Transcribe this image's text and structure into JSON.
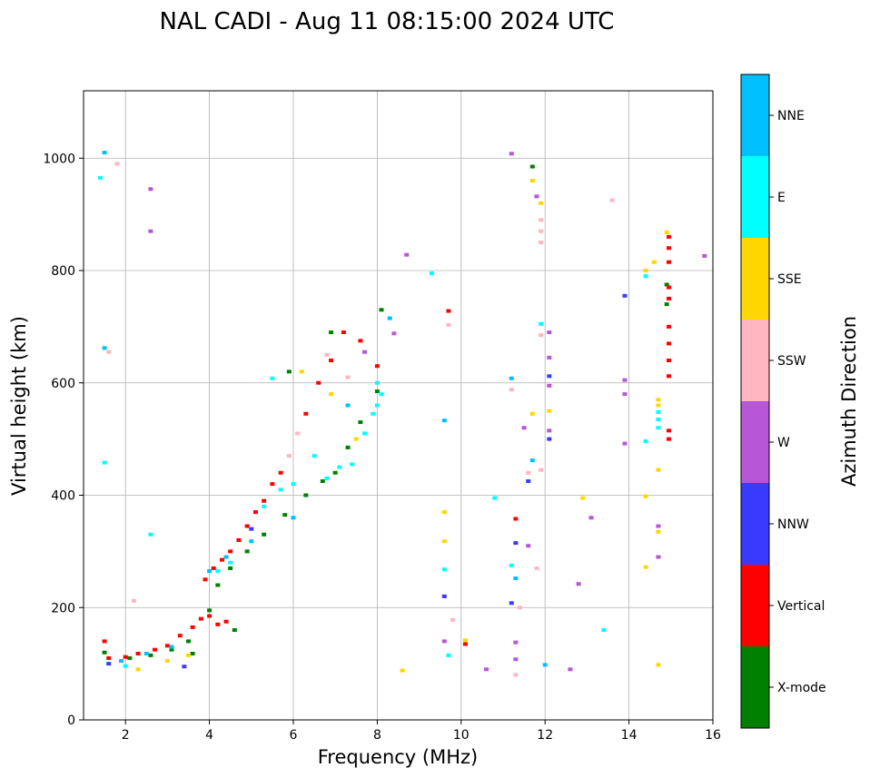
{
  "chart_data": {
    "type": "scatter",
    "title": "NAL CADI - Aug 11 08:15:00 2024 UTC",
    "xlabel": "Frequency (MHz)",
    "ylabel": "Virtual height (km)",
    "xlim": [
      1,
      16
    ],
    "ylim": [
      0,
      1120
    ],
    "xticks": [
      2,
      4,
      6,
      8,
      10,
      12,
      14,
      16
    ],
    "yticks": [
      0,
      200,
      400,
      600,
      800,
      1000
    ],
    "grid": true,
    "colorbar": {
      "label": "Azimuth Direction",
      "categories": [
        {
          "name": "X-mode",
          "color": "#008000"
        },
        {
          "name": "Vertical",
          "color": "#ff0000"
        },
        {
          "name": "NNW",
          "color": "#3a3aff"
        },
        {
          "name": "W",
          "color": "#b657d6"
        },
        {
          "name": "SSW",
          "color": "#ffb6c1"
        },
        {
          "name": "SSE",
          "color": "#ffd700"
        },
        {
          "name": "E",
          "color": "#00ffff"
        },
        {
          "name": "NNE",
          "color": "#00bfff"
        }
      ]
    },
    "series": [
      {
        "name": "X-mode",
        "points": [
          [
            1.5,
            120
          ],
          [
            2.1,
            110
          ],
          [
            2.6,
            115
          ],
          [
            3.1,
            125
          ],
          [
            3.5,
            140
          ],
          [
            3.6,
            118
          ],
          [
            4.0,
            195
          ],
          [
            4.6,
            160
          ],
          [
            4.2,
            240
          ],
          [
            4.5,
            270
          ],
          [
            4.9,
            300
          ],
          [
            5.3,
            330
          ],
          [
            5.8,
            365
          ],
          [
            6.3,
            400
          ],
          [
            6.7,
            425
          ],
          [
            7.0,
            440
          ],
          [
            7.3,
            485
          ],
          [
            7.6,
            530
          ],
          [
            8.0,
            585
          ],
          [
            8.1,
            730
          ],
          [
            6.9,
            690
          ],
          [
            5.9,
            620
          ],
          [
            11.7,
            985
          ],
          [
            14.9,
            775
          ],
          [
            14.9,
            740
          ]
        ]
      },
      {
        "name": "Vertical",
        "points": [
          [
            1.5,
            140
          ],
          [
            1.6,
            110
          ],
          [
            2.0,
            112
          ],
          [
            2.3,
            118
          ],
          [
            2.7,
            125
          ],
          [
            3.0,
            132
          ],
          [
            3.3,
            150
          ],
          [
            3.6,
            165
          ],
          [
            3.8,
            180
          ],
          [
            4.0,
            185
          ],
          [
            4.2,
            170
          ],
          [
            4.4,
            175
          ],
          [
            3.9,
            250
          ],
          [
            4.1,
            270
          ],
          [
            4.3,
            285
          ],
          [
            4.5,
            300
          ],
          [
            4.7,
            320
          ],
          [
            4.9,
            345
          ],
          [
            5.1,
            370
          ],
          [
            5.3,
            390
          ],
          [
            5.5,
            420
          ],
          [
            5.7,
            440
          ],
          [
            6.3,
            545
          ],
          [
            6.6,
            600
          ],
          [
            6.9,
            640
          ],
          [
            7.2,
            690
          ],
          [
            7.6,
            675
          ],
          [
            8.0,
            630
          ],
          [
            9.7,
            728
          ],
          [
            10.1,
            135
          ],
          [
            11.3,
            358
          ],
          [
            14.95,
            860
          ],
          [
            14.95,
            840
          ],
          [
            14.95,
            815
          ],
          [
            14.95,
            770
          ],
          [
            14.95,
            750
          ],
          [
            14.95,
            700
          ],
          [
            14.95,
            670
          ],
          [
            14.95,
            640
          ],
          [
            14.95,
            612
          ],
          [
            14.95,
            515
          ],
          [
            14.95,
            500
          ]
        ]
      },
      {
        "name": "NNW",
        "points": [
          [
            1.6,
            100
          ],
          [
            3.4,
            95
          ],
          [
            5.0,
            340
          ],
          [
            9.6,
            220
          ],
          [
            11.2,
            208
          ],
          [
            11.3,
            315
          ],
          [
            11.6,
            425
          ],
          [
            12.1,
            612
          ],
          [
            12.1,
            500
          ],
          [
            13.9,
            755
          ]
        ]
      },
      {
        "name": "W",
        "points": [
          [
            2.6,
            945
          ],
          [
            2.6,
            870
          ],
          [
            8.7,
            828
          ],
          [
            9.6,
            140
          ],
          [
            10.6,
            90
          ],
          [
            11.2,
            1008
          ],
          [
            11.3,
            108
          ],
          [
            11.3,
            138
          ],
          [
            11.5,
            520
          ],
          [
            11.6,
            310
          ],
          [
            11.8,
            932
          ],
          [
            12.1,
            690
          ],
          [
            12.1,
            645
          ],
          [
            12.1,
            595
          ],
          [
            12.1,
            515
          ],
          [
            12.6,
            90
          ],
          [
            12.8,
            242
          ],
          [
            13.1,
            360
          ],
          [
            13.9,
            605
          ],
          [
            13.9,
            580
          ],
          [
            13.9,
            492
          ],
          [
            14.7,
            345
          ],
          [
            14.7,
            290
          ],
          [
            15.8,
            826
          ],
          [
            8.4,
            688
          ],
          [
            7.7,
            655
          ]
        ]
      },
      {
        "name": "SSW",
        "points": [
          [
            1.8,
            990
          ],
          [
            1.6,
            655
          ],
          [
            2.2,
            212
          ],
          [
            9.7,
            703
          ],
          [
            11.2,
            588
          ],
          [
            11.4,
            200
          ],
          [
            11.6,
            440
          ],
          [
            11.8,
            270
          ],
          [
            11.9,
            890
          ],
          [
            11.9,
            870
          ],
          [
            11.9,
            850
          ],
          [
            11.9,
            685
          ],
          [
            11.9,
            445
          ],
          [
            13.6,
            925
          ],
          [
            11.3,
            80
          ],
          [
            9.8,
            178
          ],
          [
            6.8,
            650
          ],
          [
            7.3,
            610
          ],
          [
            5.9,
            470
          ],
          [
            6.1,
            510
          ]
        ]
      },
      {
        "name": "SSE",
        "points": [
          [
            2.3,
            90
          ],
          [
            3.0,
            105
          ],
          [
            3.5,
            115
          ],
          [
            6.2,
            620
          ],
          [
            6.9,
            580
          ],
          [
            7.5,
            500
          ],
          [
            8.6,
            88
          ],
          [
            9.6,
            318
          ],
          [
            9.6,
            370
          ],
          [
            10.1,
            142
          ],
          [
            11.7,
            960
          ],
          [
            11.7,
            545
          ],
          [
            11.9,
            920
          ],
          [
            12.1,
            550
          ],
          [
            12.9,
            395
          ],
          [
            14.4,
            800
          ],
          [
            14.4,
            398
          ],
          [
            14.4,
            272
          ],
          [
            14.6,
            815
          ],
          [
            14.7,
            570
          ],
          [
            14.7,
            560
          ],
          [
            14.7,
            445
          ],
          [
            14.7,
            335
          ],
          [
            14.7,
            98
          ],
          [
            14.9,
            868
          ]
        ]
      },
      {
        "name": "E",
        "points": [
          [
            1.4,
            965
          ],
          [
            1.5,
            458
          ],
          [
            2.0,
            96
          ],
          [
            2.6,
            330
          ],
          [
            4.2,
            265
          ],
          [
            4.5,
            280
          ],
          [
            5.3,
            380
          ],
          [
            5.7,
            410
          ],
          [
            6.0,
            420
          ],
          [
            6.5,
            470
          ],
          [
            6.8,
            430
          ],
          [
            7.1,
            450
          ],
          [
            7.4,
            455
          ],
          [
            7.7,
            510
          ],
          [
            7.9,
            545
          ],
          [
            8.0,
            560
          ],
          [
            8.0,
            600
          ],
          [
            8.1,
            580
          ],
          [
            5.5,
            608
          ],
          [
            9.3,
            795
          ],
          [
            9.7,
            115
          ],
          [
            9.6,
            268
          ],
          [
            10.8,
            395
          ],
          [
            11.2,
            275
          ],
          [
            11.9,
            705
          ],
          [
            13.4,
            160
          ],
          [
            14.4,
            790
          ],
          [
            14.4,
            496
          ],
          [
            14.7,
            548
          ],
          [
            14.7,
            535
          ],
          [
            14.7,
            520
          ]
        ]
      },
      {
        "name": "NNE",
        "points": [
          [
            1.5,
            1010
          ],
          [
            1.5,
            662
          ],
          [
            1.9,
            105
          ],
          [
            2.5,
            118
          ],
          [
            3.1,
            130
          ],
          [
            4.0,
            265
          ],
          [
            4.4,
            290
          ],
          [
            5.0,
            318
          ],
          [
            6.0,
            360
          ],
          [
            7.3,
            560
          ],
          [
            8.3,
            715
          ],
          [
            9.6,
            533
          ],
          [
            11.2,
            608
          ],
          [
            11.3,
            252
          ],
          [
            11.7,
            462
          ],
          [
            12.0,
            98
          ]
        ]
      }
    ]
  }
}
